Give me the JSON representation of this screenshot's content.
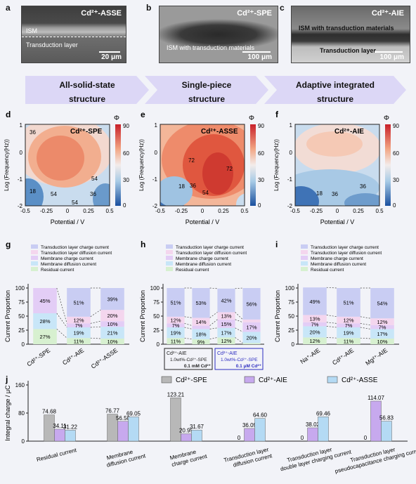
{
  "panel_a": {
    "label": "a",
    "title": "Cd²⁺-ASSE",
    "layer_top": "ISM",
    "layer_bottom": "Transduction layer",
    "scale": "20 μm"
  },
  "panel_b": {
    "label": "b",
    "title": "Cd²⁺-SPE",
    "caption": "ISM with transduction materials",
    "scale": "100 μm"
  },
  "panel_c": {
    "label": "c",
    "title": "Cd²⁺-AIE",
    "caption_top": "ISM with transduction materials",
    "caption_bottom": "Transduction layer",
    "scale": "100 μm"
  },
  "structures": [
    {
      "line1": "All-solid-state",
      "line2": "structure"
    },
    {
      "line1": "Single-piece",
      "line2": "structure"
    },
    {
      "line1": "Adaptive integrated",
      "line2": "structure"
    }
  ],
  "heatmaps": {
    "xlabel": "Potential / V",
    "ylabel": "Log (Frequency(Hz))",
    "xticks": [
      "-0.5",
      "-0.25",
      "0",
      "0.25",
      "0.5"
    ],
    "yticks": [
      "1",
      "0",
      "-1",
      "-2"
    ],
    "colorbar_ticks": [
      "90",
      "60",
      "30",
      "0"
    ],
    "colorbar_symbol": "Φ",
    "panels": [
      {
        "label": "d",
        "title": "Cd²⁺-SPE",
        "annotations": [
          "36",
          "54",
          "18",
          "54",
          "54",
          "36"
        ]
      },
      {
        "label": "e",
        "title": "Cd²⁺-ASSE",
        "annotations": [
          "72",
          "72",
          "18",
          "36",
          "54"
        ]
      },
      {
        "label": "f",
        "title": "Cd²⁺-AIE",
        "annotations": [
          "18",
          "36",
          "36"
        ]
      }
    ]
  },
  "legend_items": [
    "Transduction layer charge current",
    "Transduction layer diffusion current",
    "Membrane charge current",
    "Membrane diffusion current",
    "Residual current"
  ],
  "series_colors": {
    "tl_charge": "#c9cdf3",
    "tl_diffusion": "#f4d6ee",
    "mem_charge": "#e3cdf6",
    "mem_diffusion": "#c8e6f8",
    "residual": "#d7f0d0"
  },
  "proportion_ylabel": "Current Proportion",
  "proportion_yticks": [
    "0",
    "25",
    "50",
    "75",
    "100"
  ],
  "chart_data": [
    {
      "panel": "g",
      "type": "bar",
      "categories": [
        "Cd²⁺-SPE",
        "Cd²⁺-AIE",
        "Cd²⁺-ASSE"
      ],
      "series": [
        {
          "name": "Residual current",
          "values": [
            27,
            11,
            10
          ]
        },
        {
          "name": "Membrane diffusion current",
          "values": [
            28,
            19,
            21
          ]
        },
        {
          "name": "Membrane charge current",
          "values": [
            45,
            7,
            10
          ]
        },
        {
          "name": "Transduction layer diffusion current",
          "values": [
            0,
            12,
            20
          ]
        },
        {
          "name": "Transduction layer charge current",
          "values": [
            0,
            51,
            39
          ]
        }
      ],
      "labels": [
        [
          "27%",
          "28%",
          "45%",
          "",
          ""
        ],
        [
          "11%",
          "19%",
          "7%",
          "12%",
          "51%"
        ],
        [
          "10%",
          "21%",
          "10%",
          "20%",
          "39%"
        ]
      ],
      "ylim": [
        0,
        100
      ],
      "ylabel": "Current Proportion"
    },
    {
      "panel": "h",
      "type": "bar",
      "categories": [
        "a1",
        "a2",
        "b1",
        "b2"
      ],
      "series": [
        {
          "name": "Residual current",
          "values": [
            11,
            9,
            12,
            2
          ]
        },
        {
          "name": "Membrane diffusion current",
          "values": [
            19,
            18,
            17,
            20
          ]
        },
        {
          "name": "Membrane charge current",
          "values": [
            7,
            6,
            15,
            17
          ]
        },
        {
          "name": "Transduction layer diffusion current",
          "values": [
            12,
            14,
            13,
            5
          ]
        },
        {
          "name": "Transduction layer charge current",
          "values": [
            51,
            53,
            42,
            56
          ]
        }
      ],
      "labels": [
        [
          "11%",
          "19%",
          "7%",
          "12%",
          "51%"
        ],
        [
          "9%",
          "18%",
          "6%",
          "14%",
          "53%"
        ],
        [
          "12%",
          "17%",
          "15%",
          "13%",
          "42%"
        ],
        [
          "2%",
          "20%",
          "17%",
          "5%",
          "56%"
        ]
      ],
      "groups": [
        {
          "line1": "Cd²⁺-AIE",
          "line2": "1.0wt%-Cd²⁺-SPE",
          "note": "0.1 mM Cd²⁺"
        },
        {
          "line1": "Cd²⁺-AIE",
          "line2": "1.0wt%-Cd²⁺-SPE",
          "note": "0.1 μM Cd²⁺"
        }
      ],
      "ylim": [
        0,
        100
      ],
      "ylabel": "Current Proportion"
    },
    {
      "panel": "i",
      "type": "bar",
      "categories": [
        "Na⁺-AIE",
        "Cd²⁺-AIE",
        "Mg²⁺-AIE"
      ],
      "series": [
        {
          "name": "Residual current",
          "values": [
            12,
            11,
            10
          ]
        },
        {
          "name": "Membrane diffusion current",
          "values": [
            20,
            19,
            17
          ]
        },
        {
          "name": "Membrane charge current",
          "values": [
            7,
            7,
            7
          ]
        },
        {
          "name": "Transduction layer diffusion current",
          "values": [
            13,
            12,
            12
          ]
        },
        {
          "name": "Transduction layer charge current",
          "values": [
            49,
            51,
            54
          ]
        }
      ],
      "labels": [
        [
          "12%",
          "20%",
          "7%",
          "13%",
          "49%"
        ],
        [
          "11%",
          "19%",
          "7%",
          "12%",
          "51%"
        ],
        [
          "10%",
          "17%",
          "7%",
          "12%",
          "54%"
        ]
      ],
      "ylim": [
        0,
        100
      ],
      "ylabel": "Current Proportion"
    },
    {
      "panel": "j",
      "type": "bar",
      "ylabel": "Integral charge / μC",
      "ylim": [
        0,
        160
      ],
      "yticks": [
        "0",
        "80",
        "160"
      ],
      "categories": [
        "Residual current",
        "Membrane diffusion current",
        "Membrane charge current",
        "Transduction layer diffusion current",
        "Transduction layer double layer charging current",
        "Transduction layer pseudocapacitance charging current"
      ],
      "category_lines": [
        [
          "Residual current"
        ],
        [
          "Membrane",
          "diffusion current"
        ],
        [
          "Membrane",
          "charge current"
        ],
        [
          "Transduction layer",
          "diffusion current"
        ],
        [
          "Transduction layer",
          "double layer charging current"
        ],
        [
          "Transduction layer",
          "pseudocapacitance charging current"
        ]
      ],
      "series": [
        {
          "name": "Cd²⁺-SPE",
          "values": [
            74.68,
            76.77,
            123.21,
            0,
            0,
            0
          ],
          "labels": [
            "74.68",
            "76.77",
            "123.21",
            "0",
            "0",
            "0"
          ],
          "color": "#b8b8b8"
        },
        {
          "name": "Cd²⁺-AIE",
          "values": [
            34.11,
            56.5,
            20.95,
            36.09,
            38.02,
            114.07
          ],
          "labels": [
            "34.11",
            "56.50",
            "20.95",
            "36.09",
            "38.02",
            "114.07"
          ],
          "color": "#c7a9ee"
        },
        {
          "name": "Cd²⁺-ASSE",
          "values": [
            31.22,
            69.05,
            31.67,
            64.6,
            69.46,
            56.83
          ],
          "labels": [
            "31.22",
            "69.05",
            "31.67",
            "64.60",
            "69.46",
            "56.83"
          ],
          "color": "#b4daf4"
        }
      ]
    }
  ]
}
